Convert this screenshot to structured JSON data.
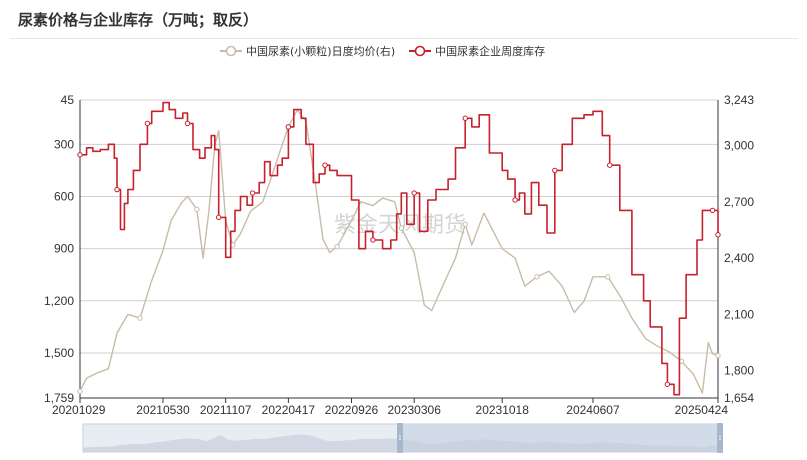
{
  "title": "尿素价格与企业库存（万吨；取反）",
  "watermark": "紫金天风期货",
  "colors": {
    "price_line": "#c8bca8",
    "stock_line": "#c8202c",
    "grid": "#d0d0d0",
    "axis_text": "#333333",
    "zoom_bg": "#e8edf3",
    "zoom_selected": "#d2dbe8",
    "zoom_handle": "#a7b7cc"
  },
  "chart_data": {
    "type": "line",
    "x_ticks": [
      "20201029",
      "20210530",
      "20211107",
      "20220417",
      "20220926",
      "20230306",
      "20231018",
      "20240607",
      "20250424"
    ],
    "left_axis": {
      "ticks": [
        "45",
        "300",
        "600",
        "900",
        "1,200",
        "1,500",
        "1,759"
      ],
      "min": 45,
      "max": 1759,
      "inverted": true
    },
    "right_axis": {
      "ticks": [
        "3,243",
        "3,000",
        "2,700",
        "2,400",
        "2,100",
        "1,800",
        "1,654"
      ],
      "min": 1654,
      "max": 3243
    },
    "grid": true,
    "legend_position": "top-center",
    "series": [
      {
        "name": "中国尿素(小颗粒)日度均价(右)",
        "axis": "right",
        "color": "#c8bca8",
        "style": "line",
        "points": [
          [
            "20201029",
            1690
          ],
          [
            "20201115",
            1760
          ],
          [
            "20201215",
            1790
          ],
          [
            "20210110",
            1810
          ],
          [
            "20210201",
            2000
          ],
          [
            "20210301",
            2100
          ],
          [
            "20210401",
            2080
          ],
          [
            "20210501",
            2280
          ],
          [
            "20210530",
            2440
          ],
          [
            "20210620",
            2600
          ],
          [
            "20210715",
            2690
          ],
          [
            "20210801",
            2730
          ],
          [
            "20210825",
            2660
          ],
          [
            "20210910",
            2400
          ],
          [
            "20210925",
            2650
          ],
          [
            "20211010",
            3000
          ],
          [
            "20211020",
            3080
          ],
          [
            "20211107",
            2600
          ],
          [
            "20211125",
            2470
          ],
          [
            "20211215",
            2530
          ],
          [
            "20220110",
            2650
          ],
          [
            "20220210",
            2700
          ],
          [
            "20220301",
            2810
          ],
          [
            "20220320",
            2930
          ],
          [
            "20220417",
            3100
          ],
          [
            "20220510",
            3190
          ],
          [
            "20220601",
            3130
          ],
          [
            "20220625",
            2800
          ],
          [
            "20220715",
            2500
          ],
          [
            "20220801",
            2430
          ],
          [
            "20220820",
            2460
          ],
          [
            "20220926",
            2600
          ],
          [
            "20221020",
            2700
          ],
          [
            "20221120",
            2680
          ],
          [
            "20221215",
            2720
          ],
          [
            "20230115",
            2700
          ],
          [
            "20230201",
            2560
          ],
          [
            "20230306",
            2430
          ],
          [
            "20230401",
            2150
          ],
          [
            "20230420",
            2120
          ],
          [
            "20230520",
            2260
          ],
          [
            "20230620",
            2400
          ],
          [
            "20230715",
            2580
          ],
          [
            "20230801",
            2470
          ],
          [
            "20230901",
            2640
          ],
          [
            "20231018",
            2450
          ],
          [
            "20231120",
            2400
          ],
          [
            "20231215",
            2250
          ],
          [
            "20240115",
            2300
          ],
          [
            "20240215",
            2330
          ],
          [
            "20240320",
            2250
          ],
          [
            "20240420",
            2110
          ],
          [
            "20240515",
            2170
          ],
          [
            "20240607",
            2300
          ],
          [
            "20240715",
            2300
          ],
          [
            "20240815",
            2200
          ],
          [
            "20240915",
            2080
          ],
          [
            "20241020",
            1970
          ],
          [
            "20241120",
            1930
          ],
          [
            "20241220",
            1900
          ],
          [
            "20250120",
            1850
          ],
          [
            "20250220",
            1780
          ],
          [
            "20250315",
            1680
          ],
          [
            "20250330",
            1950
          ],
          [
            "20250410",
            1890
          ],
          [
            "20250424",
            1880
          ]
        ]
      },
      {
        "name": "中国尿素企业周度库存",
        "axis": "left",
        "color": "#c8202c",
        "style": "step",
        "points": [
          [
            "20201029",
            360
          ],
          [
            "20201115",
            320
          ],
          [
            "20201201",
            340
          ],
          [
            "20201220",
            330
          ],
          [
            "20210110",
            300
          ],
          [
            "20210125",
            380
          ],
          [
            "20210201",
            560
          ],
          [
            "20210210",
            790
          ],
          [
            "20210220",
            640
          ],
          [
            "20210301",
            560
          ],
          [
            "20210315",
            450
          ],
          [
            "20210401",
            300
          ],
          [
            "20210420",
            180
          ],
          [
            "20210501",
            110
          ],
          [
            "20210530",
            60
          ],
          [
            "20210615",
            100
          ],
          [
            "20210701",
            150
          ],
          [
            "20210720",
            120
          ],
          [
            "20210801",
            180
          ],
          [
            "20210815",
            330
          ],
          [
            "20210901",
            380
          ],
          [
            "20210915",
            320
          ],
          [
            "20211001",
            250
          ],
          [
            "20211010",
            330
          ],
          [
            "20211020",
            720
          ],
          [
            "20211107",
            950
          ],
          [
            "20211120",
            800
          ],
          [
            "20211201",
            680
          ],
          [
            "20211215",
            600
          ],
          [
            "20220101",
            650
          ],
          [
            "20220115",
            580
          ],
          [
            "20220201",
            520
          ],
          [
            "20220215",
            400
          ],
          [
            "20220301",
            480
          ],
          [
            "20220320",
            420
          ],
          [
            "20220401",
            380
          ],
          [
            "20220417",
            200
          ],
          [
            "20220501",
            100
          ],
          [
            "20220520",
            150
          ],
          [
            "20220601",
            300
          ],
          [
            "20220620",
            520
          ],
          [
            "20220705",
            470
          ],
          [
            "20220720",
            420
          ],
          [
            "20220801",
            450
          ],
          [
            "20220820",
            480
          ],
          [
            "20220926",
            620
          ],
          [
            "20221015",
            900
          ],
          [
            "20221101",
            800
          ],
          [
            "20221120",
            850
          ],
          [
            "20221215",
            900
          ],
          [
            "20230105",
            850
          ],
          [
            "20230120",
            700
          ],
          [
            "20230201",
            580
          ],
          [
            "20230215",
            760
          ],
          [
            "20230306",
            580
          ],
          [
            "20230320",
            800
          ],
          [
            "20230410",
            620
          ],
          [
            "20230501",
            560
          ],
          [
            "20230601",
            500
          ],
          [
            "20230620",
            320
          ],
          [
            "20230715",
            150
          ],
          [
            "20230801",
            200
          ],
          [
            "20230820",
            130
          ],
          [
            "20230915",
            350
          ],
          [
            "20231018",
            450
          ],
          [
            "20231101",
            500
          ],
          [
            "20231120",
            620
          ],
          [
            "20231201",
            580
          ],
          [
            "20231215",
            700
          ],
          [
            "20240101",
            520
          ],
          [
            "20240120",
            650
          ],
          [
            "20240210",
            810
          ],
          [
            "20240301",
            450
          ],
          [
            "20240320",
            300
          ],
          [
            "20240415",
            150
          ],
          [
            "20240515",
            130
          ],
          [
            "20240607",
            110
          ],
          [
            "20240701",
            250
          ],
          [
            "20240720",
            420
          ],
          [
            "20240815",
            680
          ],
          [
            "20240915",
            1050
          ],
          [
            "20241015",
            1200
          ],
          [
            "20241101",
            1350
          ],
          [
            "20241201",
            1560
          ],
          [
            "20241215",
            1680
          ],
          [
            "20250101",
            1740
          ],
          [
            "20250115",
            1300
          ],
          [
            "20250201",
            1050
          ],
          [
            "20250301",
            850
          ],
          [
            "20250315",
            680
          ],
          [
            "20250410",
            680
          ],
          [
            "20250424",
            820
          ]
        ]
      }
    ]
  }
}
